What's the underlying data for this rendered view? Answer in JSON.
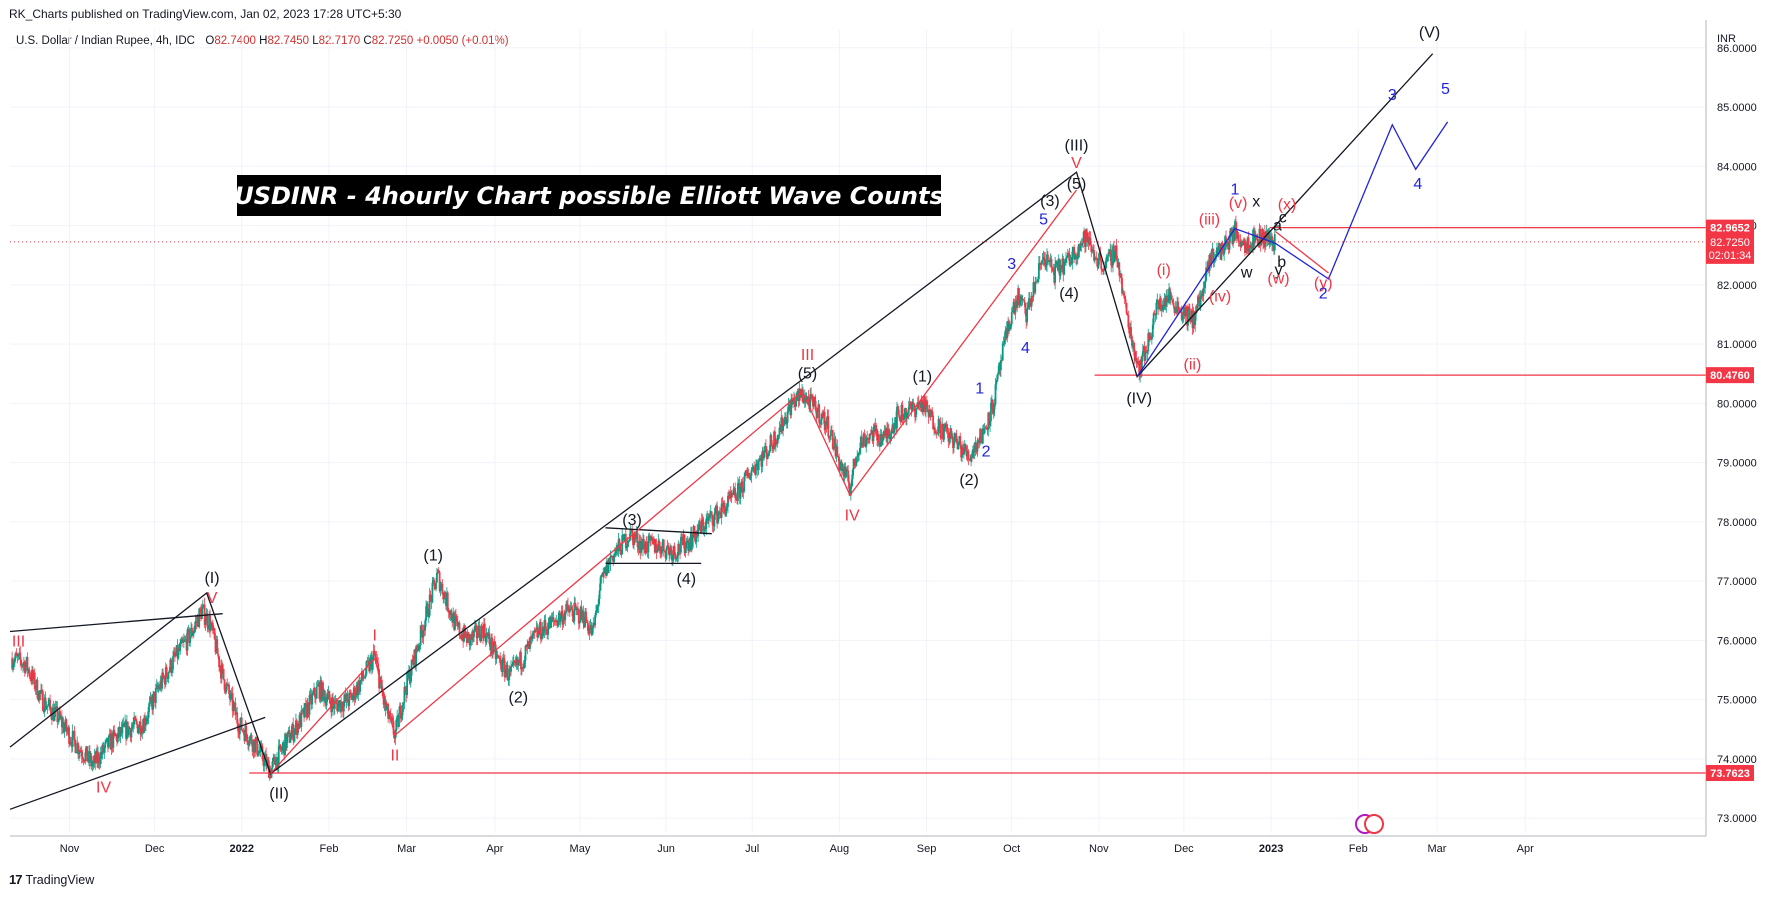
{
  "header": {
    "publisher": "RK_Charts published on TradingView.com, Jan 02, 2023 17:28 UTC+5:30"
  },
  "legend": {
    "symbol": "U.S. Dollar / Indian Rupee, 4h, IDC",
    "open_label": "O",
    "open": "82.7400",
    "high_label": "H",
    "high": "82.7450",
    "low_label": "L",
    "low": "82.7170",
    "close_label": "C",
    "close": "82.7250",
    "change": "+0.0050 (+0.01%)"
  },
  "footer": {
    "brand": "TradingView",
    "logo": "17"
  },
  "chart_title": "USDINR - 4hourly Chart possible Elliott Wave Counts",
  "colors": {
    "black_wave": "#131722",
    "red_wave": "#f23645",
    "blue_wave": "#2124d9",
    "candle_up": "#089981",
    "candle_down": "#f23645",
    "price_tag_bg": "#f23645"
  },
  "chart_data": {
    "type": "candlestick",
    "symbol": "USDINR",
    "timeframe": "4h",
    "currency_label": "INR",
    "y_axis": {
      "range": [
        72.75,
        86.3
      ],
      "ticks": [
        "73.0000",
        "74.0000",
        "75.0000",
        "76.0000",
        "77.0000",
        "78.0000",
        "79.0000",
        "80.0000",
        "81.0000",
        "82.0000",
        "83.0000",
        "84.0000",
        "85.0000",
        "86.0000"
      ]
    },
    "x_axis": {
      "ticks": [
        {
          "label": "Nov",
          "t": 56
        },
        {
          "label": "Dec",
          "t": 136
        },
        {
          "label": "2022",
          "t": 218,
          "bold": true
        },
        {
          "label": "Feb",
          "t": 300
        },
        {
          "label": "Mar",
          "t": 373
        },
        {
          "label": "Apr",
          "t": 456
        },
        {
          "label": "May",
          "t": 536
        },
        {
          "label": "Jun",
          "t": 617
        },
        {
          "label": "Jul",
          "t": 698
        },
        {
          "label": "Aug",
          "t": 780
        },
        {
          "label": "Sep",
          "t": 862
        },
        {
          "label": "Oct",
          "t": 942
        },
        {
          "label": "Nov",
          "t": 1024
        },
        {
          "label": "Dec",
          "t": 1104
        },
        {
          "label": "2023",
          "t": 1186,
          "bold": true
        },
        {
          "label": "Feb",
          "t": 1268
        },
        {
          "label": "Mar",
          "t": 1342
        },
        {
          "label": "Apr",
          "t": 1425
        }
      ]
    },
    "price_path": [
      {
        "t": 2,
        "p": 75.7
      },
      {
        "t": 15,
        "p": 75.6
      },
      {
        "t": 30,
        "p": 75.0
      },
      {
        "t": 45,
        "p": 74.7
      },
      {
        "t": 60,
        "p": 74.3
      },
      {
        "t": 78,
        "p": 73.9
      },
      {
        "t": 95,
        "p": 74.3
      },
      {
        "t": 110,
        "p": 74.5
      },
      {
        "t": 125,
        "p": 74.6
      },
      {
        "t": 140,
        "p": 75.2
      },
      {
        "t": 155,
        "p": 75.7
      },
      {
        "t": 170,
        "p": 76.1
      },
      {
        "t": 180,
        "p": 76.5
      },
      {
        "t": 188,
        "p": 76.3
      },
      {
        "t": 200,
        "p": 75.4
      },
      {
        "t": 215,
        "p": 74.6
      },
      {
        "t": 232,
        "p": 74.2
      },
      {
        "t": 245,
        "p": 73.8
      },
      {
        "t": 260,
        "p": 74.3
      },
      {
        "t": 275,
        "p": 74.7
      },
      {
        "t": 290,
        "p": 75.2
      },
      {
        "t": 305,
        "p": 74.9
      },
      {
        "t": 320,
        "p": 75.0
      },
      {
        "t": 333,
        "p": 75.4
      },
      {
        "t": 343,
        "p": 75.75
      },
      {
        "t": 352,
        "p": 74.9
      },
      {
        "t": 362,
        "p": 74.4
      },
      {
        "t": 372,
        "p": 75.2
      },
      {
        "t": 382,
        "p": 75.8
      },
      {
        "t": 394,
        "p": 76.6
      },
      {
        "t": 402,
        "p": 77.1
      },
      {
        "t": 410,
        "p": 76.7
      },
      {
        "t": 420,
        "p": 76.2
      },
      {
        "t": 432,
        "p": 76.0
      },
      {
        "t": 445,
        "p": 76.2
      },
      {
        "t": 458,
        "p": 75.7
      },
      {
        "t": 470,
        "p": 75.4
      },
      {
        "t": 482,
        "p": 75.7
      },
      {
        "t": 495,
        "p": 76.1
      },
      {
        "t": 510,
        "p": 76.3
      },
      {
        "t": 525,
        "p": 76.5
      },
      {
        "t": 540,
        "p": 76.4
      },
      {
        "t": 548,
        "p": 76.1
      },
      {
        "t": 555,
        "p": 76.9
      },
      {
        "t": 565,
        "p": 77.4
      },
      {
        "t": 575,
        "p": 77.6
      },
      {
        "t": 583,
        "p": 77.8
      },
      {
        "t": 595,
        "p": 77.6
      },
      {
        "t": 610,
        "p": 77.6
      },
      {
        "t": 625,
        "p": 77.5
      },
      {
        "t": 640,
        "p": 77.7
      },
      {
        "t": 655,
        "p": 78.0
      },
      {
        "t": 670,
        "p": 78.2
      },
      {
        "t": 685,
        "p": 78.5
      },
      {
        "t": 698,
        "p": 78.9
      },
      {
        "t": 712,
        "p": 79.2
      },
      {
        "t": 725,
        "p": 79.6
      },
      {
        "t": 735,
        "p": 80.0
      },
      {
        "t": 745,
        "p": 80.15
      },
      {
        "t": 758,
        "p": 79.9
      },
      {
        "t": 770,
        "p": 79.6
      },
      {
        "t": 780,
        "p": 79.0
      },
      {
        "t": 790,
        "p": 78.6
      },
      {
        "t": 798,
        "p": 79.3
      },
      {
        "t": 810,
        "p": 79.5
      },
      {
        "t": 822,
        "p": 79.4
      },
      {
        "t": 835,
        "p": 79.8
      },
      {
        "t": 848,
        "p": 79.9
      },
      {
        "t": 858,
        "p": 80.0
      },
      {
        "t": 868,
        "p": 79.7
      },
      {
        "t": 880,
        "p": 79.5
      },
      {
        "t": 892,
        "p": 79.3
      },
      {
        "t": 902,
        "p": 79.1
      },
      {
        "t": 915,
        "p": 79.5
      },
      {
        "t": 925,
        "p": 80.0
      },
      {
        "t": 932,
        "p": 80.7
      },
      {
        "t": 940,
        "p": 81.4
      },
      {
        "t": 948,
        "p": 81.8
      },
      {
        "t": 956,
        "p": 81.5
      },
      {
        "t": 964,
        "p": 82.0
      },
      {
        "t": 972,
        "p": 82.5
      },
      {
        "t": 982,
        "p": 82.2
      },
      {
        "t": 995,
        "p": 82.4
      },
      {
        "t": 1003,
        "p": 82.6
      },
      {
        "t": 1012,
        "p": 82.8
      },
      {
        "t": 1020,
        "p": 82.5
      },
      {
        "t": 1030,
        "p": 82.3
      },
      {
        "t": 1040,
        "p": 82.6
      },
      {
        "t": 1048,
        "p": 81.7
      },
      {
        "t": 1056,
        "p": 81.0
      },
      {
        "t": 1062,
        "p": 80.6
      },
      {
        "t": 1070,
        "p": 81.0
      },
      {
        "t": 1078,
        "p": 81.6
      },
      {
        "t": 1090,
        "p": 81.8
      },
      {
        "t": 1100,
        "p": 81.6
      },
      {
        "t": 1112,
        "p": 81.4
      },
      {
        "t": 1122,
        "p": 81.9
      },
      {
        "t": 1130,
        "p": 82.5
      },
      {
        "t": 1140,
        "p": 82.6
      },
      {
        "t": 1152,
        "p": 82.9
      },
      {
        "t": 1162,
        "p": 82.7
      },
      {
        "t": 1172,
        "p": 82.8
      },
      {
        "t": 1182,
        "p": 82.8
      },
      {
        "t": 1190,
        "p": 82.72
      }
    ],
    "price_levels": [
      {
        "price": 82.9652,
        "label": "82.9652",
        "style": "red-line"
      },
      {
        "price": 82.725,
        "label": "82.7250",
        "countdown": "02:01:34",
        "style": "current-price"
      },
      {
        "price": 80.476,
        "label": "80.4760",
        "style": "red-line"
      },
      {
        "price": 73.7623,
        "label": "73.7623",
        "style": "red-line"
      }
    ],
    "wave_lines": {
      "black": [
        [
          [
            0,
            74.2
          ],
          [
            185,
            76.8
          ],
          [
            245,
            73.75
          ],
          [
            745,
            80.4
          ],
          [
            1003,
            83.9
          ],
          [
            1060,
            80.45
          ],
          [
            1338,
            85.9
          ]
        ],
        [
          [
            0,
            76.15
          ],
          [
            200,
            76.45
          ]
        ],
        [
          [
            0,
            73.15
          ],
          [
            240,
            74.7
          ]
        ],
        [
          [
            560,
            77.9
          ],
          [
            660,
            77.8
          ]
        ],
        [
          [
            560,
            77.3
          ],
          [
            650,
            77.3
          ]
        ]
      ],
      "red": [
        [
          [
            245,
            73.75
          ],
          [
            343,
            75.7
          ],
          [
            362,
            74.4
          ],
          [
            745,
            80.2
          ],
          [
            790,
            78.45
          ],
          [
            1003,
            83.6
          ]
        ],
        [
          [
            1190,
            82.9
          ],
          [
            1240,
            82.2
          ]
        ]
      ],
      "blue": [
        [
          [
            1060,
            80.45
          ],
          [
            1152,
            82.95
          ],
          [
            1190,
            82.7
          ],
          [
            1240,
            82.1
          ],
          [
            1300,
            84.7
          ],
          [
            1322,
            83.95
          ],
          [
            1352,
            84.75
          ]
        ]
      ]
    },
    "annotations": [
      {
        "text": "(I)",
        "t": 190,
        "p": 76.97,
        "c": "black"
      },
      {
        "text": "V",
        "t": 190,
        "p": 76.63,
        "c": "red"
      },
      {
        "text": "III",
        "t": 8,
        "p": 75.9,
        "c": "red"
      },
      {
        "text": "IV",
        "t": 88,
        "p": 73.43,
        "c": "red"
      },
      {
        "text": "(II)",
        "t": 253,
        "p": 73.33,
        "c": "black"
      },
      {
        "text": "I",
        "t": 343,
        "p": 76.0,
        "c": "red"
      },
      {
        "text": "II",
        "t": 362,
        "p": 73.97,
        "c": "red"
      },
      {
        "text": "(1)",
        "t": 398,
        "p": 77.35,
        "c": "black"
      },
      {
        "text": "(2)",
        "t": 478,
        "p": 74.95,
        "c": "black"
      },
      {
        "text": "(3)",
        "t": 585,
        "p": 77.95,
        "c": "black"
      },
      {
        "text": "(4)",
        "t": 636,
        "p": 76.95,
        "c": "black"
      },
      {
        "text": "III",
        "t": 750,
        "p": 80.73,
        "c": "red"
      },
      {
        "text": "(5)",
        "t": 750,
        "p": 80.42,
        "c": "black"
      },
      {
        "text": "IV",
        "t": 792,
        "p": 78.02,
        "c": "red"
      },
      {
        "text": "(1)",
        "t": 858,
        "p": 80.37,
        "c": "black"
      },
      {
        "text": "1",
        "t": 912,
        "p": 80.17,
        "c": "blue"
      },
      {
        "text": "2",
        "t": 918,
        "p": 79.1,
        "c": "blue"
      },
      {
        "text": "(2)",
        "t": 902,
        "p": 78.62,
        "c": "black"
      },
      {
        "text": "3",
        "t": 942,
        "p": 82.27,
        "c": "blue"
      },
      {
        "text": "4",
        "t": 955,
        "p": 80.85,
        "c": "blue"
      },
      {
        "text": "5",
        "t": 972,
        "p": 83.02,
        "c": "blue"
      },
      {
        "text": "(3)",
        "t": 978,
        "p": 83.33,
        "c": "black"
      },
      {
        "text": "(III)",
        "t": 1003,
        "p": 84.27,
        "c": "black"
      },
      {
        "text": "V",
        "t": 1003,
        "p": 83.97,
        "c": "red"
      },
      {
        "text": "(5)",
        "t": 1003,
        "p": 83.62,
        "c": "black"
      },
      {
        "text": "(4)",
        "t": 996,
        "p": 81.77,
        "c": "black"
      },
      {
        "text": "(IV)",
        "t": 1062,
        "p": 80.0,
        "c": "black"
      },
      {
        "text": "(i)",
        "t": 1085,
        "p": 82.17,
        "c": "red"
      },
      {
        "text": "(ii)",
        "t": 1112,
        "p": 80.57,
        "c": "red"
      },
      {
        "text": "(iii)",
        "t": 1128,
        "p": 83.02,
        "c": "red"
      },
      {
        "text": "(iv)",
        "t": 1138,
        "p": 81.72,
        "c": "red"
      },
      {
        "text": "1",
        "t": 1152,
        "p": 83.52,
        "c": "blue"
      },
      {
        "text": "(v)",
        "t": 1155,
        "p": 83.3,
        "c": "red"
      },
      {
        "text": "x",
        "t": 1172,
        "p": 83.32,
        "c": "black"
      },
      {
        "text": "w",
        "t": 1163,
        "p": 82.12,
        "c": "black"
      },
      {
        "text": "a",
        "t": 1192,
        "p": 82.92,
        "c": "black"
      },
      {
        "text": "c",
        "t": 1197,
        "p": 83.05,
        "c": "black"
      },
      {
        "text": "(x)",
        "t": 1201,
        "p": 83.27,
        "c": "red"
      },
      {
        "text": "b",
        "t": 1196,
        "p": 82.3,
        "c": "black"
      },
      {
        "text": "y",
        "t": 1193,
        "p": 82.17,
        "c": "black"
      },
      {
        "text": "(w)",
        "t": 1193,
        "p": 82.02,
        "c": "red"
      },
      {
        "text": "(y)",
        "t": 1235,
        "p": 81.95,
        "c": "red"
      },
      {
        "text": "2",
        "t": 1235,
        "p": 81.77,
        "c": "blue"
      },
      {
        "text": "3",
        "t": 1300,
        "p": 85.12,
        "c": "blue"
      },
      {
        "text": "4",
        "t": 1324,
        "p": 83.62,
        "c": "blue"
      },
      {
        "text": "5",
        "t": 1350,
        "p": 85.22,
        "c": "blue"
      },
      {
        "text": "(V)",
        "t": 1335,
        "p": 86.17,
        "c": "black"
      }
    ]
  }
}
